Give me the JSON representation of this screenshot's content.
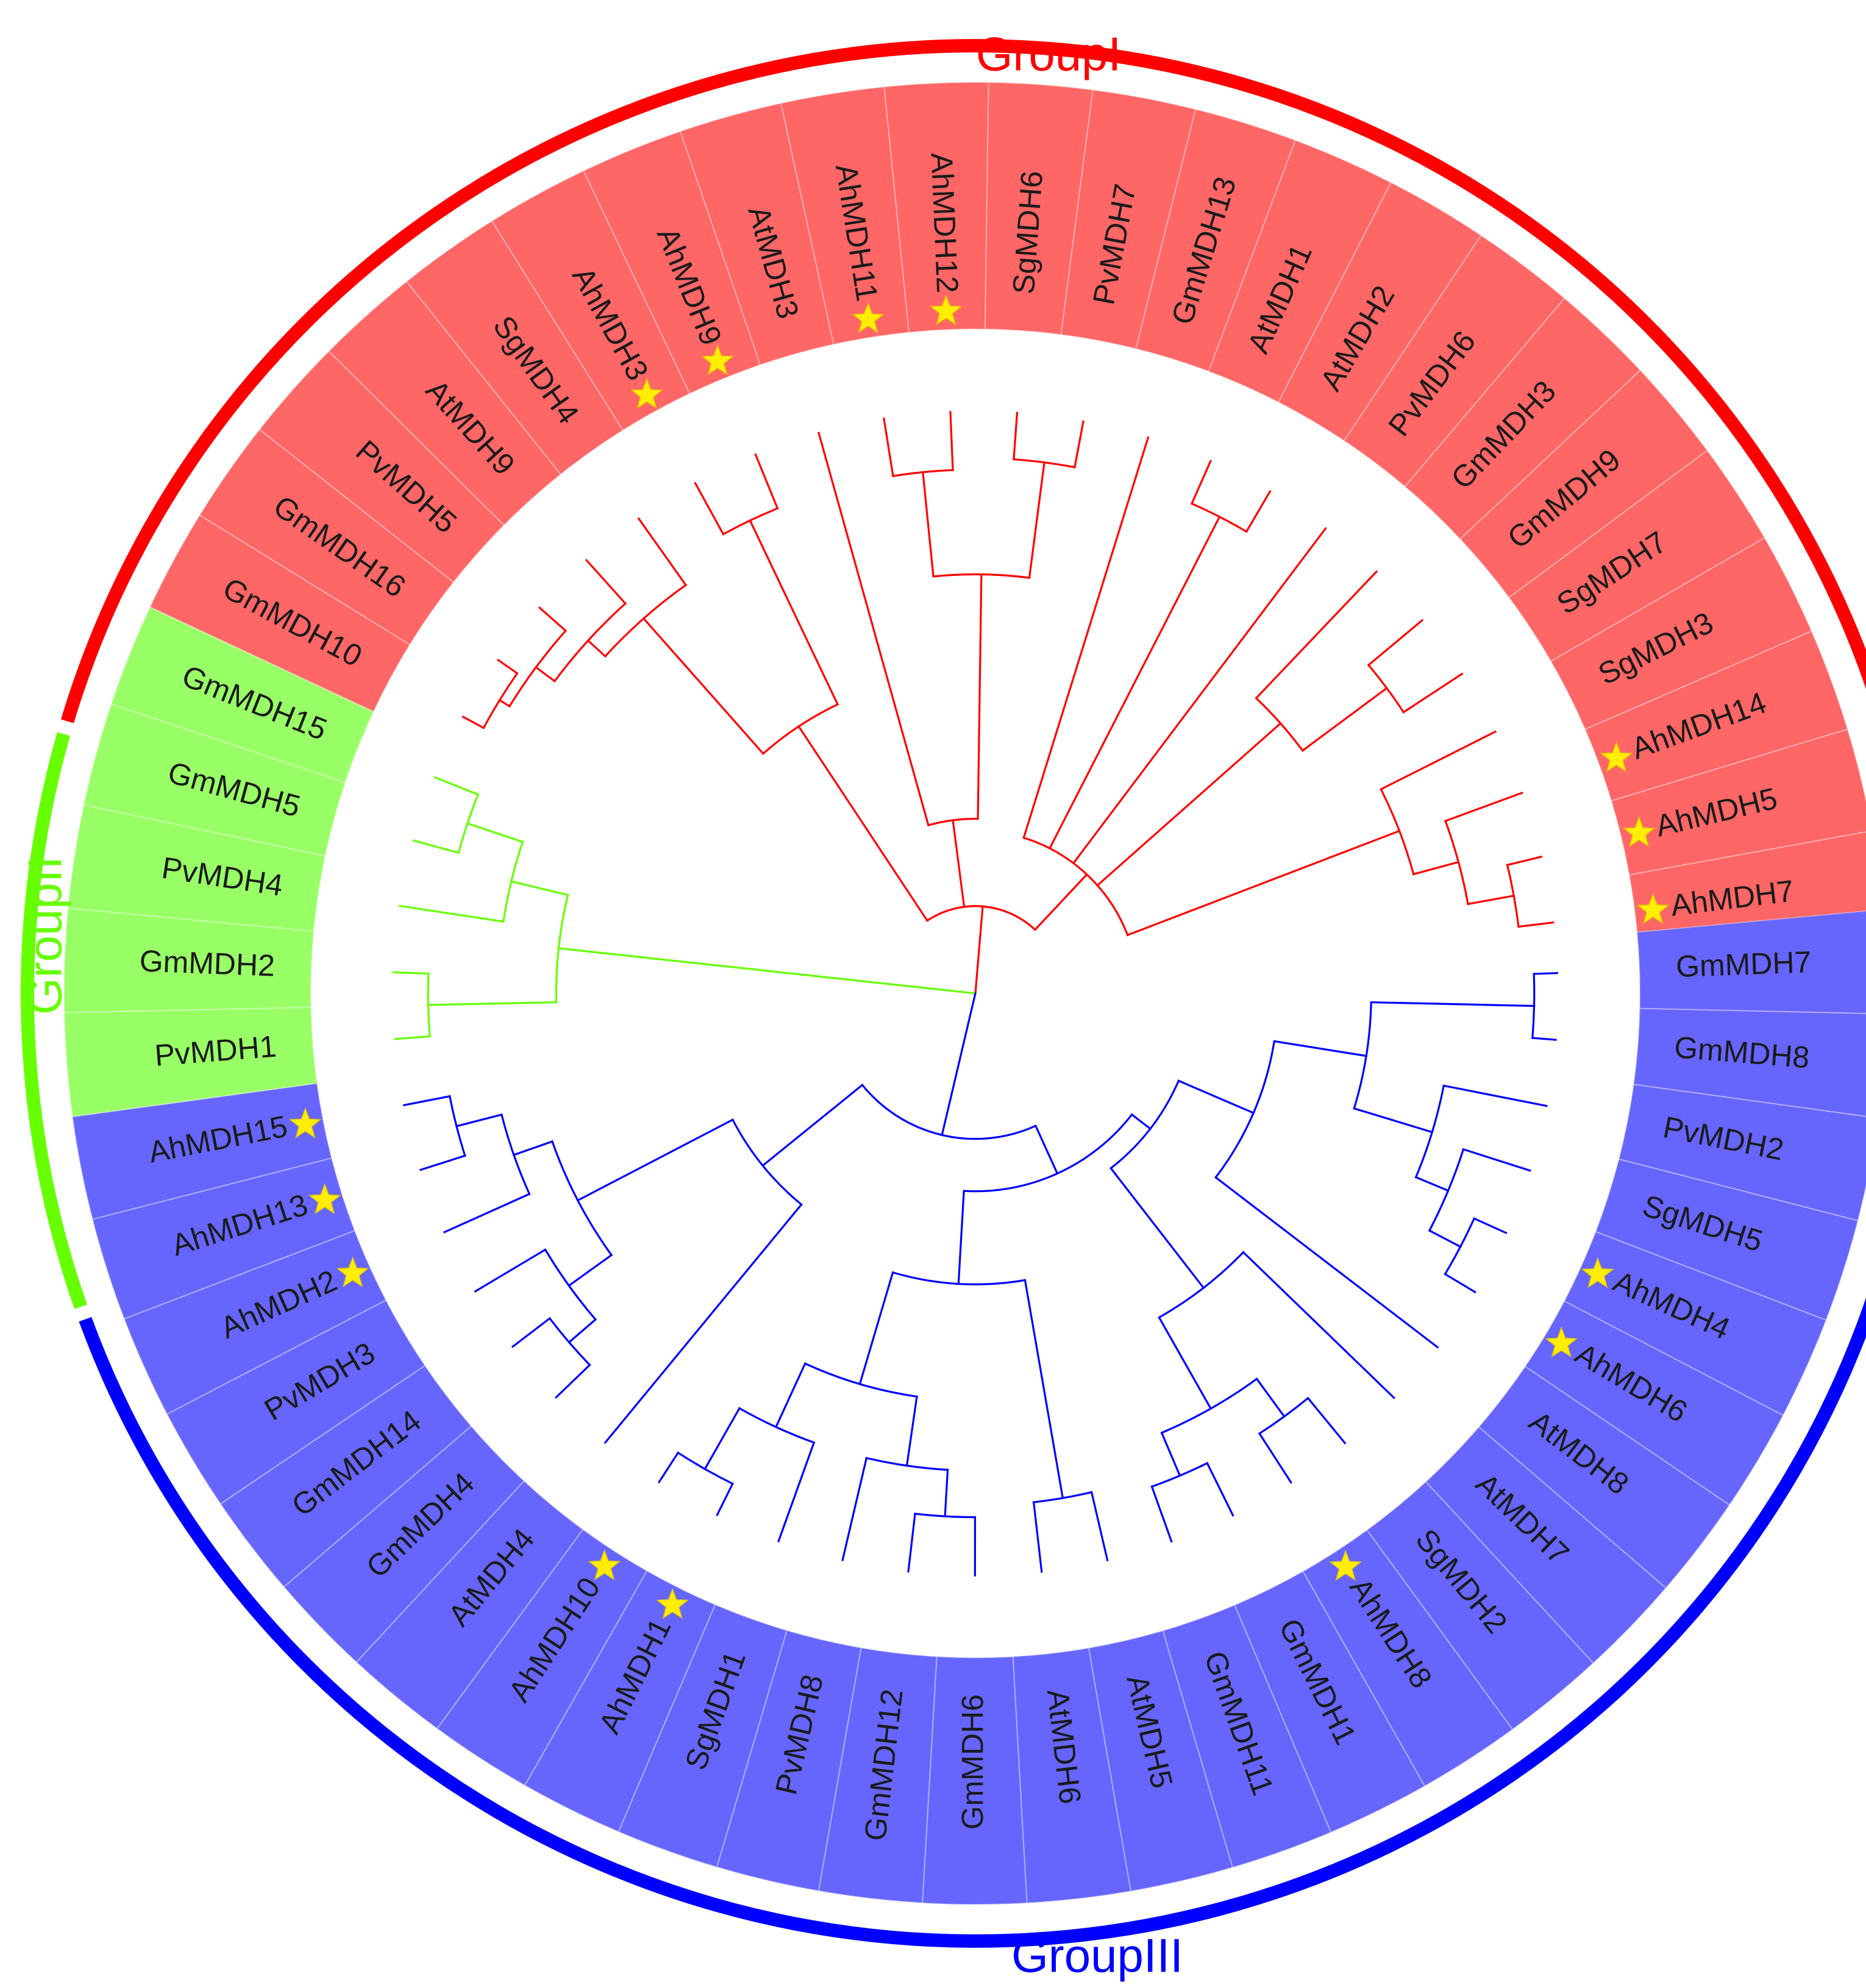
{
  "groups": [
    {
      "id": "I",
      "label": "GroupI",
      "color": "#ff0000",
      "fill": "#ff6666",
      "start_deg": 7,
      "end_deg": 167
    },
    {
      "id": "II",
      "label": "GroupII",
      "color": "#66ff00",
      "fill": "#99ff66",
      "start_deg": 167,
      "end_deg": 203
    },
    {
      "id": "III",
      "label": "GroupIII",
      "color": "#0000ff",
      "fill": "#6666ff",
      "start_deg": 203,
      "end_deg": 362
    }
  ],
  "leaves": [
    {
      "label": "AhMDH7",
      "group": "I",
      "star": true
    },
    {
      "label": "AhMDH5",
      "group": "I",
      "star": true
    },
    {
      "label": "AhMDH14",
      "group": "I",
      "star": true
    },
    {
      "label": "SgMDH3",
      "group": "I",
      "star": false
    },
    {
      "label": "SgMDH7",
      "group": "I",
      "star": false
    },
    {
      "label": "GmMDH9",
      "group": "I",
      "star": false
    },
    {
      "label": "GmMDH3",
      "group": "I",
      "star": false
    },
    {
      "label": "PvMDH6",
      "group": "I",
      "star": false
    },
    {
      "label": "AtMDH2",
      "group": "I",
      "star": false
    },
    {
      "label": "AtMDH1",
      "group": "I",
      "star": false
    },
    {
      "label": "GmMDH13",
      "group": "I",
      "star": false
    },
    {
      "label": "PvMDH7",
      "group": "I",
      "star": false
    },
    {
      "label": "SgMDH6",
      "group": "I",
      "star": false
    },
    {
      "label": "AhMDH12",
      "group": "I",
      "star": true
    },
    {
      "label": "AhMDH11",
      "group": "I",
      "star": true
    },
    {
      "label": "AtMDH3",
      "group": "I",
      "star": false
    },
    {
      "label": "AhMDH9",
      "group": "I",
      "star": true
    },
    {
      "label": "AhMDH3",
      "group": "I",
      "star": true
    },
    {
      "label": "SgMDH4",
      "group": "I",
      "star": false
    },
    {
      "label": "AtMDH9",
      "group": "I",
      "star": false
    },
    {
      "label": "PvMDH5",
      "group": "I",
      "star": false
    },
    {
      "label": "GmMDH16",
      "group": "I",
      "star": false
    },
    {
      "label": "GmMDH10",
      "group": "I",
      "star": false
    },
    {
      "label": "GmMDH15",
      "group": "II",
      "star": false
    },
    {
      "label": "GmMDH5",
      "group": "II",
      "star": false
    },
    {
      "label": "PvMDH4",
      "group": "II",
      "star": false
    },
    {
      "label": "GmMDH2",
      "group": "II",
      "star": false
    },
    {
      "label": "PvMDH1",
      "group": "II",
      "star": false
    },
    {
      "label": "AhMDH15",
      "group": "III",
      "star": true
    },
    {
      "label": "AhMDH13",
      "group": "III",
      "star": true
    },
    {
      "label": "AhMDH2",
      "group": "III",
      "star": true
    },
    {
      "label": "PvMDH3",
      "group": "III",
      "star": false
    },
    {
      "label": "GmMDH14",
      "group": "III",
      "star": false
    },
    {
      "label": "GmMDH4",
      "group": "III",
      "star": false
    },
    {
      "label": "AtMDH4",
      "group": "III",
      "star": false
    },
    {
      "label": "AhMDH10",
      "group": "III",
      "star": true
    },
    {
      "label": "AhMDH1",
      "group": "III",
      "star": true
    },
    {
      "label": "SgMDH1",
      "group": "III",
      "star": false
    },
    {
      "label": "PvMDH8",
      "group": "III",
      "star": false
    },
    {
      "label": "GmMDH12",
      "group": "III",
      "star": false
    },
    {
      "label": "GmMDH6",
      "group": "III",
      "star": false
    },
    {
      "label": "AtMDH6",
      "group": "III",
      "star": false
    },
    {
      "label": "AtMDH5",
      "group": "III",
      "star": false
    },
    {
      "label": "GmMDH11",
      "group": "III",
      "star": false
    },
    {
      "label": "GmMDH1",
      "group": "III",
      "star": false
    },
    {
      "label": "AhMDH8",
      "group": "III",
      "star": true
    },
    {
      "label": "SgMDH2",
      "group": "III",
      "star": false
    },
    {
      "label": "AtMDH7",
      "group": "III",
      "star": false
    },
    {
      "label": "AtMDH8",
      "group": "III",
      "star": false
    },
    {
      "label": "AhMDH6",
      "group": "III",
      "star": true
    },
    {
      "label": "AhMDH4",
      "group": "III",
      "star": true
    },
    {
      "label": "SgMDH5",
      "group": "III",
      "star": false
    },
    {
      "label": "PvMDH2",
      "group": "III",
      "star": false
    },
    {
      "label": "GmMDH8",
      "group": "III",
      "star": false
    },
    {
      "label": "GmMDH7",
      "group": "III",
      "star": false
    }
  ],
  "tree": {
    "d": 0,
    "g": "III",
    "c": [
      {
        "d": 0.15,
        "g": "I",
        "c": [
          {
            "d": 0.28,
            "c": [
              {
                "d": 0.78,
                "c": [
                  {
                    "d": 0.86,
                    "c": [
                      {
                        "d": 0.94,
                        "c": [
                          {
                            "d": 1,
                            "l": 0
                          },
                          {
                            "d": 1,
                            "l": 1
                          }
                        ]
                      },
                      {
                        "d": 1,
                        "l": 2
                      }
                    ]
                  },
                  {
                    "d": 1,
                    "l": 3
                  }
                ]
              },
              {
                "d": 0.7,
                "c": [
                  {
                    "d": 0.88,
                    "c": [
                      {
                        "d": 1,
                        "l": 4
                      },
                      {
                        "d": 1,
                        "l": 5
                      }
                    ]
                  },
                  {
                    "d": 1,
                    "l": 6
                  }
                ]
              },
              {
                "d": 1,
                "l": 7
              },
              {
                "d": 0.92,
                "c": [
                  {
                    "d": 1,
                    "l": 8
                  },
                  {
                    "d": 1,
                    "l": 9
                  }
                ]
              },
              {
                "d": 1,
                "l": 10
              }
            ]
          },
          {
            "d": 0.3,
            "c": [
              {
                "d": 0.72,
                "c": [
                  {
                    "d": 0.84,
                    "c": [
                      {
                        "d": 0.92,
                        "c": [
                          {
                            "d": 1,
                            "l": 11
                          },
                          {
                            "d": 1,
                            "l": 12
                          }
                        ]
                      }
                    ]
                  },
                  {
                    "d": 0.9,
                    "c": [
                      {
                        "d": 1,
                        "l": 13
                      },
                      {
                        "d": 1,
                        "l": 14
                      }
                    ]
                  }
                ]
              },
              {
                "d": 1,
                "l": 15
              }
            ]
          },
          {
            "d": 0.55,
            "c": [
              {
                "d": 0.82,
                "c": [
                  {
                    "d": 0.9,
                    "c": [
                      {
                        "d": 1,
                        "l": 16
                      },
                      {
                        "d": 1,
                        "l": 17
                      }
                    ]
                  }
                ]
              },
              {
                "d": 0.86,
                "c": [
                  {
                    "d": 1,
                    "l": 18
                  },
                  {
                    "d": 0.9,
                    "c": [
                      {
                        "d": 1,
                        "l": 19
                      },
                      {
                        "d": 0.94,
                        "c": [
                          {
                            "d": 1,
                            "l": 20
                          },
                          {
                            "d": 0.96,
                            "c": [
                              {
                                "d": 1,
                                "l": 21
                              },
                              {
                                "d": 1,
                                "l": 22
                              }
                            ]
                          }
                        ]
                      }
                    ]
                  }
                ]
              }
            ]
          }
        ]
      },
      {
        "d": 0.72,
        "g": "II",
        "c": [
          {
            "d": 0.82,
            "c": [
              {
                "d": 0.92,
                "c": [
                  {
                    "d": 1,
                    "l": 23
                  },
                  {
                    "d": 1,
                    "l": 24
                  }
                ]
              },
              {
                "d": 1,
                "l": 25
              }
            ]
          },
          {
            "d": 0.94,
            "c": [
              {
                "d": 1,
                "l": 26
              },
              {
                "d": 1,
                "l": 27
              }
            ]
          }
        ]
      },
      {
        "d": 0.25,
        "g": "III",
        "c": [
          {
            "d": 0.47,
            "c": [
              {
                "d": 0.77,
                "c": [
                  {
                    "d": 0.84,
                    "c": [
                      {
                        "d": 0.92,
                        "c": [
                          {
                            "d": 1,
                            "l": 28
                          },
                          {
                            "d": 1,
                            "l": 29
                          }
                        ]
                      },
                      {
                        "d": 1,
                        "l": 30
                      }
                    ]
                  },
                  {
                    "d": 0.86,
                    "c": [
                      {
                        "d": 1,
                        "l": 31
                      },
                      {
                        "d": 0.92,
                        "c": [
                          {
                            "d": 1,
                            "l": 32
                          },
                          {
                            "d": 1,
                            "l": 33
                          }
                        ]
                      }
                    ]
                  }
                ]
              },
              {
                "d": 1,
                "l": 34
              }
            ]
          },
          {
            "d": 0.34,
            "c": [
              {
                "d": 0.5,
                "c": [
                  {
                    "d": 0.7,
                    "c": [
                      {
                        "d": 0.82,
                        "c": [
                          {
                            "d": 0.94,
                            "c": [
                              {
                                "d": 1,
                                "l": 35
                              },
                              {
                                "d": 1,
                                "l": 36
                              }
                            ]
                          },
                          {
                            "d": 1,
                            "l": 37
                          }
                        ]
                      },
                      {
                        "d": 0.82,
                        "c": [
                          {
                            "d": 1,
                            "l": 38
                          },
                          {
                            "d": 0.9,
                            "c": [
                              {
                                "d": 1,
                                "l": 39
                              },
                              {
                                "d": 1,
                                "l": 40
                              }
                            ]
                          }
                        ]
                      }
                    ]
                  },
                  {
                    "d": 0.88,
                    "c": [
                      {
                        "d": 1,
                        "l": 41
                      },
                      {
                        "d": 1,
                        "l": 42
                      }
                    ]
                  }
                ]
              },
              {
                "d": 0.38,
                "c": [
                  {
                    "d": 0.64,
                    "c": [
                      {
                        "d": 0.82,
                        "c": [
                          {
                            "d": 0.9,
                            "c": [
                              {
                                "d": 1,
                                "l": 43
                              },
                              {
                                "d": 1,
                                "l": 44
                              }
                            ]
                          },
                          {
                            "d": 0.9,
                            "c": [
                              {
                                "d": 1,
                                "l": 45
                              },
                              {
                                "d": 1,
                                "l": 46
                              }
                            ]
                          }
                        ]
                      },
                      {
                        "d": 1,
                        "l": 47
                      }
                    ]
                  },
                  {
                    "d": 0.52,
                    "c": [
                      {
                        "d": 1,
                        "l": 48
                      },
                      {
                        "d": 0.68,
                        "c": [
                          {
                            "d": 0.82,
                            "c": [
                              {
                                "d": 0.88,
                                "c": [
                                  {
                                    "d": 0.94,
                                    "c": [
                                      {
                                        "d": 1,
                                        "l": 49
                                      },
                                      {
                                        "d": 1,
                                        "l": 50
                                      }
                                    ]
                                  },
                                  {
                                    "d": 1,
                                    "l": 51
                                  }
                                ]
                              },
                              {
                                "d": 1,
                                "l": 52
                              }
                            ]
                          },
                          {
                            "d": 0.9,
                            "c": [
                              {
                                "d": 0.96,
                                "c": [
                                  {
                                    "d": 1,
                                    "l": 53
                                  },
                                  {
                                    "d": 1,
                                    "l": 54
                                  }
                                ]
                              }
                            ]
                          }
                        ]
                      }
                    ]
                  }
                ]
              }
            ]
          }
        ]
      }
    ]
  }
}
